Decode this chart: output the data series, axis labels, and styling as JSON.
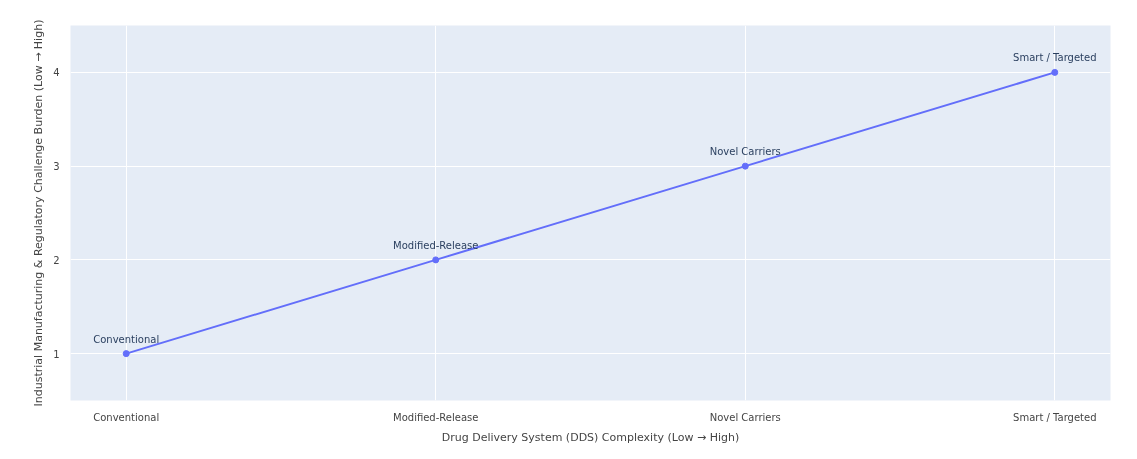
{
  "chart_data": {
    "type": "line",
    "xlabel": "Drug Delivery System (DDS) Complexity (Low → High)",
    "ylabel": "Industrial Manufacturing & Regulatory Challenge Burden (Low → High)",
    "categories": [
      "Conventional",
      "Modified-Release",
      "Novel Carriers",
      "Smart / Targeted"
    ],
    "series": [
      {
        "color": "#636efa",
        "values": [
          1,
          2,
          3,
          4
        ]
      }
    ],
    "annotations": [
      {
        "text": "Conventional",
        "x": "Conventional",
        "y": 1
      },
      {
        "text": "Modified-Release",
        "x": "Modified-Release",
        "y": 2
      },
      {
        "text": "Novel Carriers",
        "x": "Novel Carriers",
        "y": 3
      },
      {
        "text": "Smart / Targeted",
        "x": "Smart / Targeted",
        "y": 4
      }
    ],
    "ylim": [
      0.5,
      4.5
    ],
    "yticks": [
      1,
      2,
      3,
      4
    ],
    "grid": true,
    "marker": "circle",
    "line_style": "solid"
  }
}
